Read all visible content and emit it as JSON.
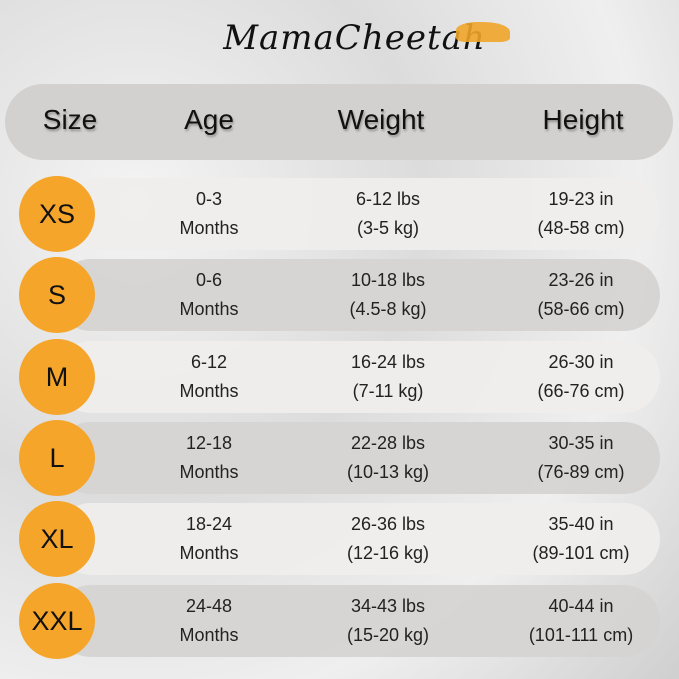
{
  "brand": "MamaCheetah",
  "header": {
    "size": "Size",
    "age": "Age",
    "weight": "Weight",
    "height": "Height"
  },
  "colors": {
    "accent": "#f5a52a",
    "header_bg": "#d3d1cf"
  },
  "rows": [
    {
      "size": "XS",
      "age": [
        "0-3",
        "Months"
      ],
      "weight": [
        "6-12 lbs",
        "(3-5 kg)"
      ],
      "height": [
        "19-23 in",
        "(48-58 cm)"
      ]
    },
    {
      "size": "S",
      "age": [
        "0-6",
        "Months"
      ],
      "weight": [
        "10-18 lbs",
        "(4.5-8 kg)"
      ],
      "height": [
        "23-26 in",
        "(58-66 cm)"
      ]
    },
    {
      "size": "M",
      "age": [
        "6-12",
        "Months"
      ],
      "weight": [
        "16-24 lbs",
        "(7-11 kg)"
      ],
      "height": [
        "26-30 in",
        "(66-76 cm)"
      ]
    },
    {
      "size": "L",
      "age": [
        "12-18",
        "Months"
      ],
      "weight": [
        "22-28 lbs",
        "(10-13 kg)"
      ],
      "height": [
        "30-35 in",
        "(76-89 cm)"
      ]
    },
    {
      "size": "XL",
      "age": [
        "18-24",
        "Months"
      ],
      "weight": [
        "26-36 lbs",
        "(12-16 kg)"
      ],
      "height": [
        "35-40 in",
        "(89-101 cm)"
      ]
    },
    {
      "size": "XXL",
      "age": [
        "24-48",
        "Months"
      ],
      "weight": [
        "34-43 lbs",
        "(15-20 kg)"
      ],
      "height": [
        "40-44 in",
        "(101-111 cm)"
      ]
    }
  ]
}
